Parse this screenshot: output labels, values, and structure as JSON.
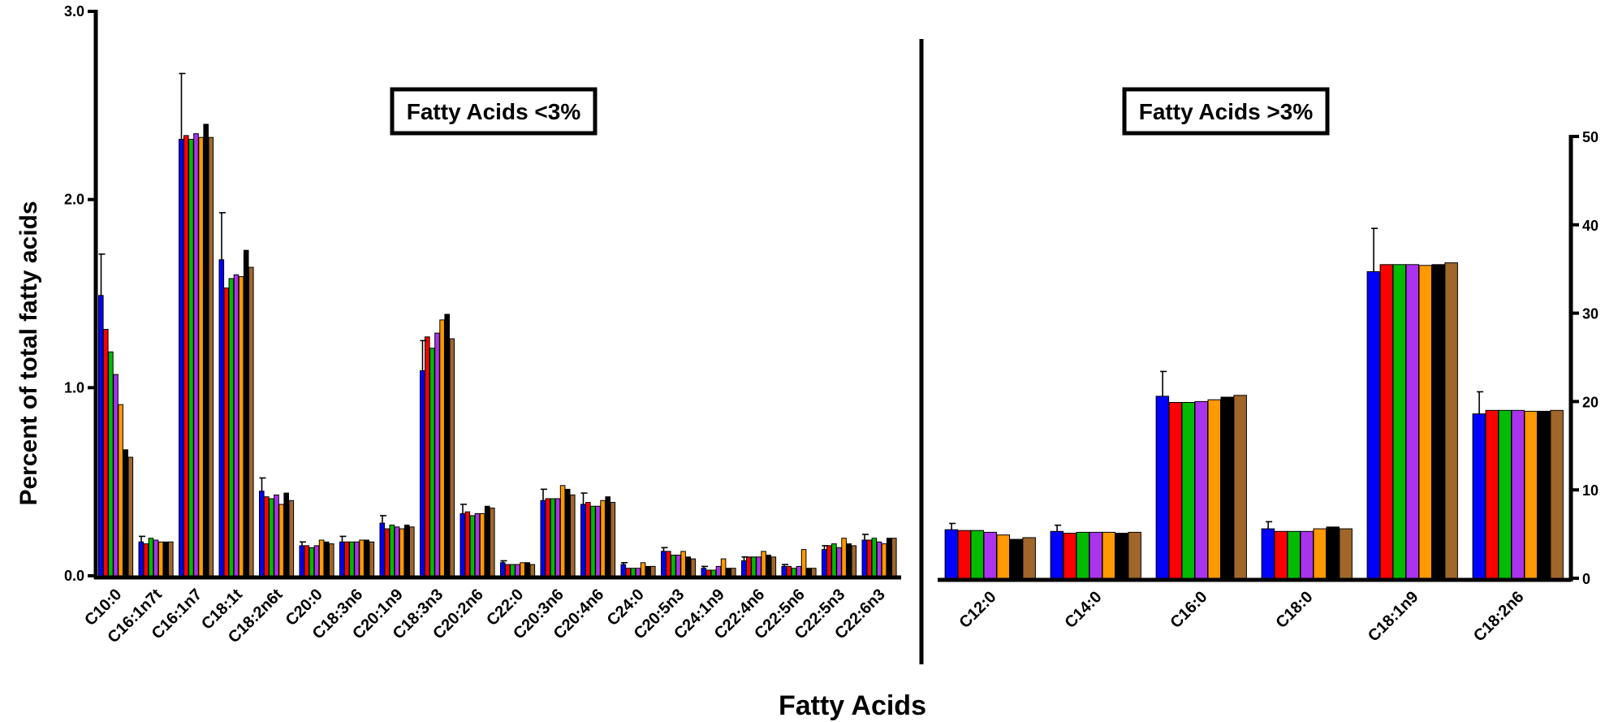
{
  "ylabel": "Percent of total fatty acids",
  "xlabel": "Fatty Acids",
  "colors": [
    "#0000ff",
    "#ff0000",
    "#00bb00",
    "#aa33ee",
    "#ff9900",
    "#000000",
    "#a0662a"
  ],
  "chart_data": [
    {
      "type": "bar",
      "title": "Fatty Acids <3%",
      "ylim": [
        0,
        3
      ],
      "yticks": [
        "0.0",
        "1.0",
        "2.0",
        "3.0"
      ],
      "y_axis_side": "left",
      "grid": false,
      "categories": [
        "C10:0",
        "C16:1n7t",
        "C16:1n7",
        "C18:1t",
        "C18:2n6t",
        "C20:0",
        "C18:3n6",
        "C20:1n9",
        "C18:3n3",
        "C20:2n6",
        "C22:0",
        "C20:3n6",
        "C20:4n6",
        "C24:0",
        "C20:5n3",
        "C24:1n9",
        "C22:4n6",
        "C22:5n6",
        "C22:5n3",
        "C22:6n3"
      ],
      "series": [
        {
          "values": [
            1.49,
            0.18,
            2.32,
            1.68,
            0.45,
            0.16,
            0.18,
            0.28,
            1.09,
            0.33,
            0.07,
            0.4,
            0.38,
            0.06,
            0.13,
            0.04,
            0.08,
            0.05,
            0.14,
            0.19
          ]
        },
        {
          "values": [
            1.31,
            0.17,
            2.34,
            1.53,
            0.42,
            0.16,
            0.18,
            0.25,
            1.27,
            0.34,
            0.06,
            0.41,
            0.39,
            0.04,
            0.13,
            0.03,
            0.1,
            0.05,
            0.16,
            0.19
          ]
        },
        {
          "values": [
            1.19,
            0.2,
            2.32,
            1.58,
            0.41,
            0.15,
            0.18,
            0.27,
            1.21,
            0.32,
            0.06,
            0.41,
            0.37,
            0.04,
            0.11,
            0.03,
            0.1,
            0.04,
            0.17,
            0.2
          ]
        },
        {
          "values": [
            1.07,
            0.19,
            2.35,
            1.6,
            0.43,
            0.16,
            0.18,
            0.26,
            1.29,
            0.33,
            0.06,
            0.41,
            0.37,
            0.04,
            0.11,
            0.05,
            0.1,
            0.05,
            0.15,
            0.18
          ]
        },
        {
          "values": [
            0.91,
            0.18,
            2.33,
            1.59,
            0.38,
            0.19,
            0.19,
            0.25,
            1.36,
            0.33,
            0.07,
            0.48,
            0.4,
            0.07,
            0.13,
            0.09,
            0.13,
            0.14,
            0.2,
            0.17
          ]
        },
        {
          "values": [
            0.67,
            0.18,
            2.4,
            1.73,
            0.44,
            0.18,
            0.19,
            0.27,
            1.39,
            0.37,
            0.07,
            0.46,
            0.42,
            0.05,
            0.1,
            0.04,
            0.11,
            0.04,
            0.17,
            0.2
          ]
        },
        {
          "values": [
            0.63,
            0.18,
            2.33,
            1.64,
            0.4,
            0.17,
            0.18,
            0.26,
            1.26,
            0.36,
            0.06,
            0.43,
            0.39,
            0.05,
            0.09,
            0.04,
            0.1,
            0.04,
            0.16,
            0.2
          ]
        }
      ],
      "errors": [
        0.22,
        0.03,
        0.35,
        0.25,
        0.07,
        0.02,
        0.03,
        0.04,
        0.16,
        0.05,
        0.01,
        0.06,
        0.06,
        0.01,
        0.02,
        0.01,
        0.02,
        0.01,
        0.02,
        0.03
      ]
    },
    {
      "type": "bar",
      "title": "Fatty Acids >3%",
      "ylim": [
        0,
        50
      ],
      "yticks": [
        "0",
        "10",
        "20",
        "30",
        "40",
        "50"
      ],
      "y_axis_side": "right",
      "grid": false,
      "categories": [
        "C12:0",
        "C14:0",
        "C16:0",
        "C18:0",
        "C18:1n9",
        "C18:2n6"
      ],
      "series": [
        {
          "values": [
            5.5,
            5.3,
            20.6,
            5.6,
            34.7,
            18.6
          ]
        },
        {
          "values": [
            5.4,
            5.1,
            19.9,
            5.3,
            35.5,
            19.0
          ]
        },
        {
          "values": [
            5.4,
            5.2,
            19.9,
            5.3,
            35.5,
            19.0
          ]
        },
        {
          "values": [
            5.2,
            5.2,
            20.0,
            5.3,
            35.5,
            19.0
          ]
        },
        {
          "values": [
            4.9,
            5.2,
            20.2,
            5.6,
            35.4,
            18.9
          ]
        },
        {
          "values": [
            4.4,
            5.1,
            20.5,
            5.8,
            35.5,
            18.9
          ]
        },
        {
          "values": [
            4.6,
            5.2,
            20.7,
            5.6,
            35.7,
            19.0
          ]
        }
      ],
      "errors": [
        0.7,
        0.7,
        2.8,
        0.8,
        4.9,
        2.5
      ]
    }
  ]
}
